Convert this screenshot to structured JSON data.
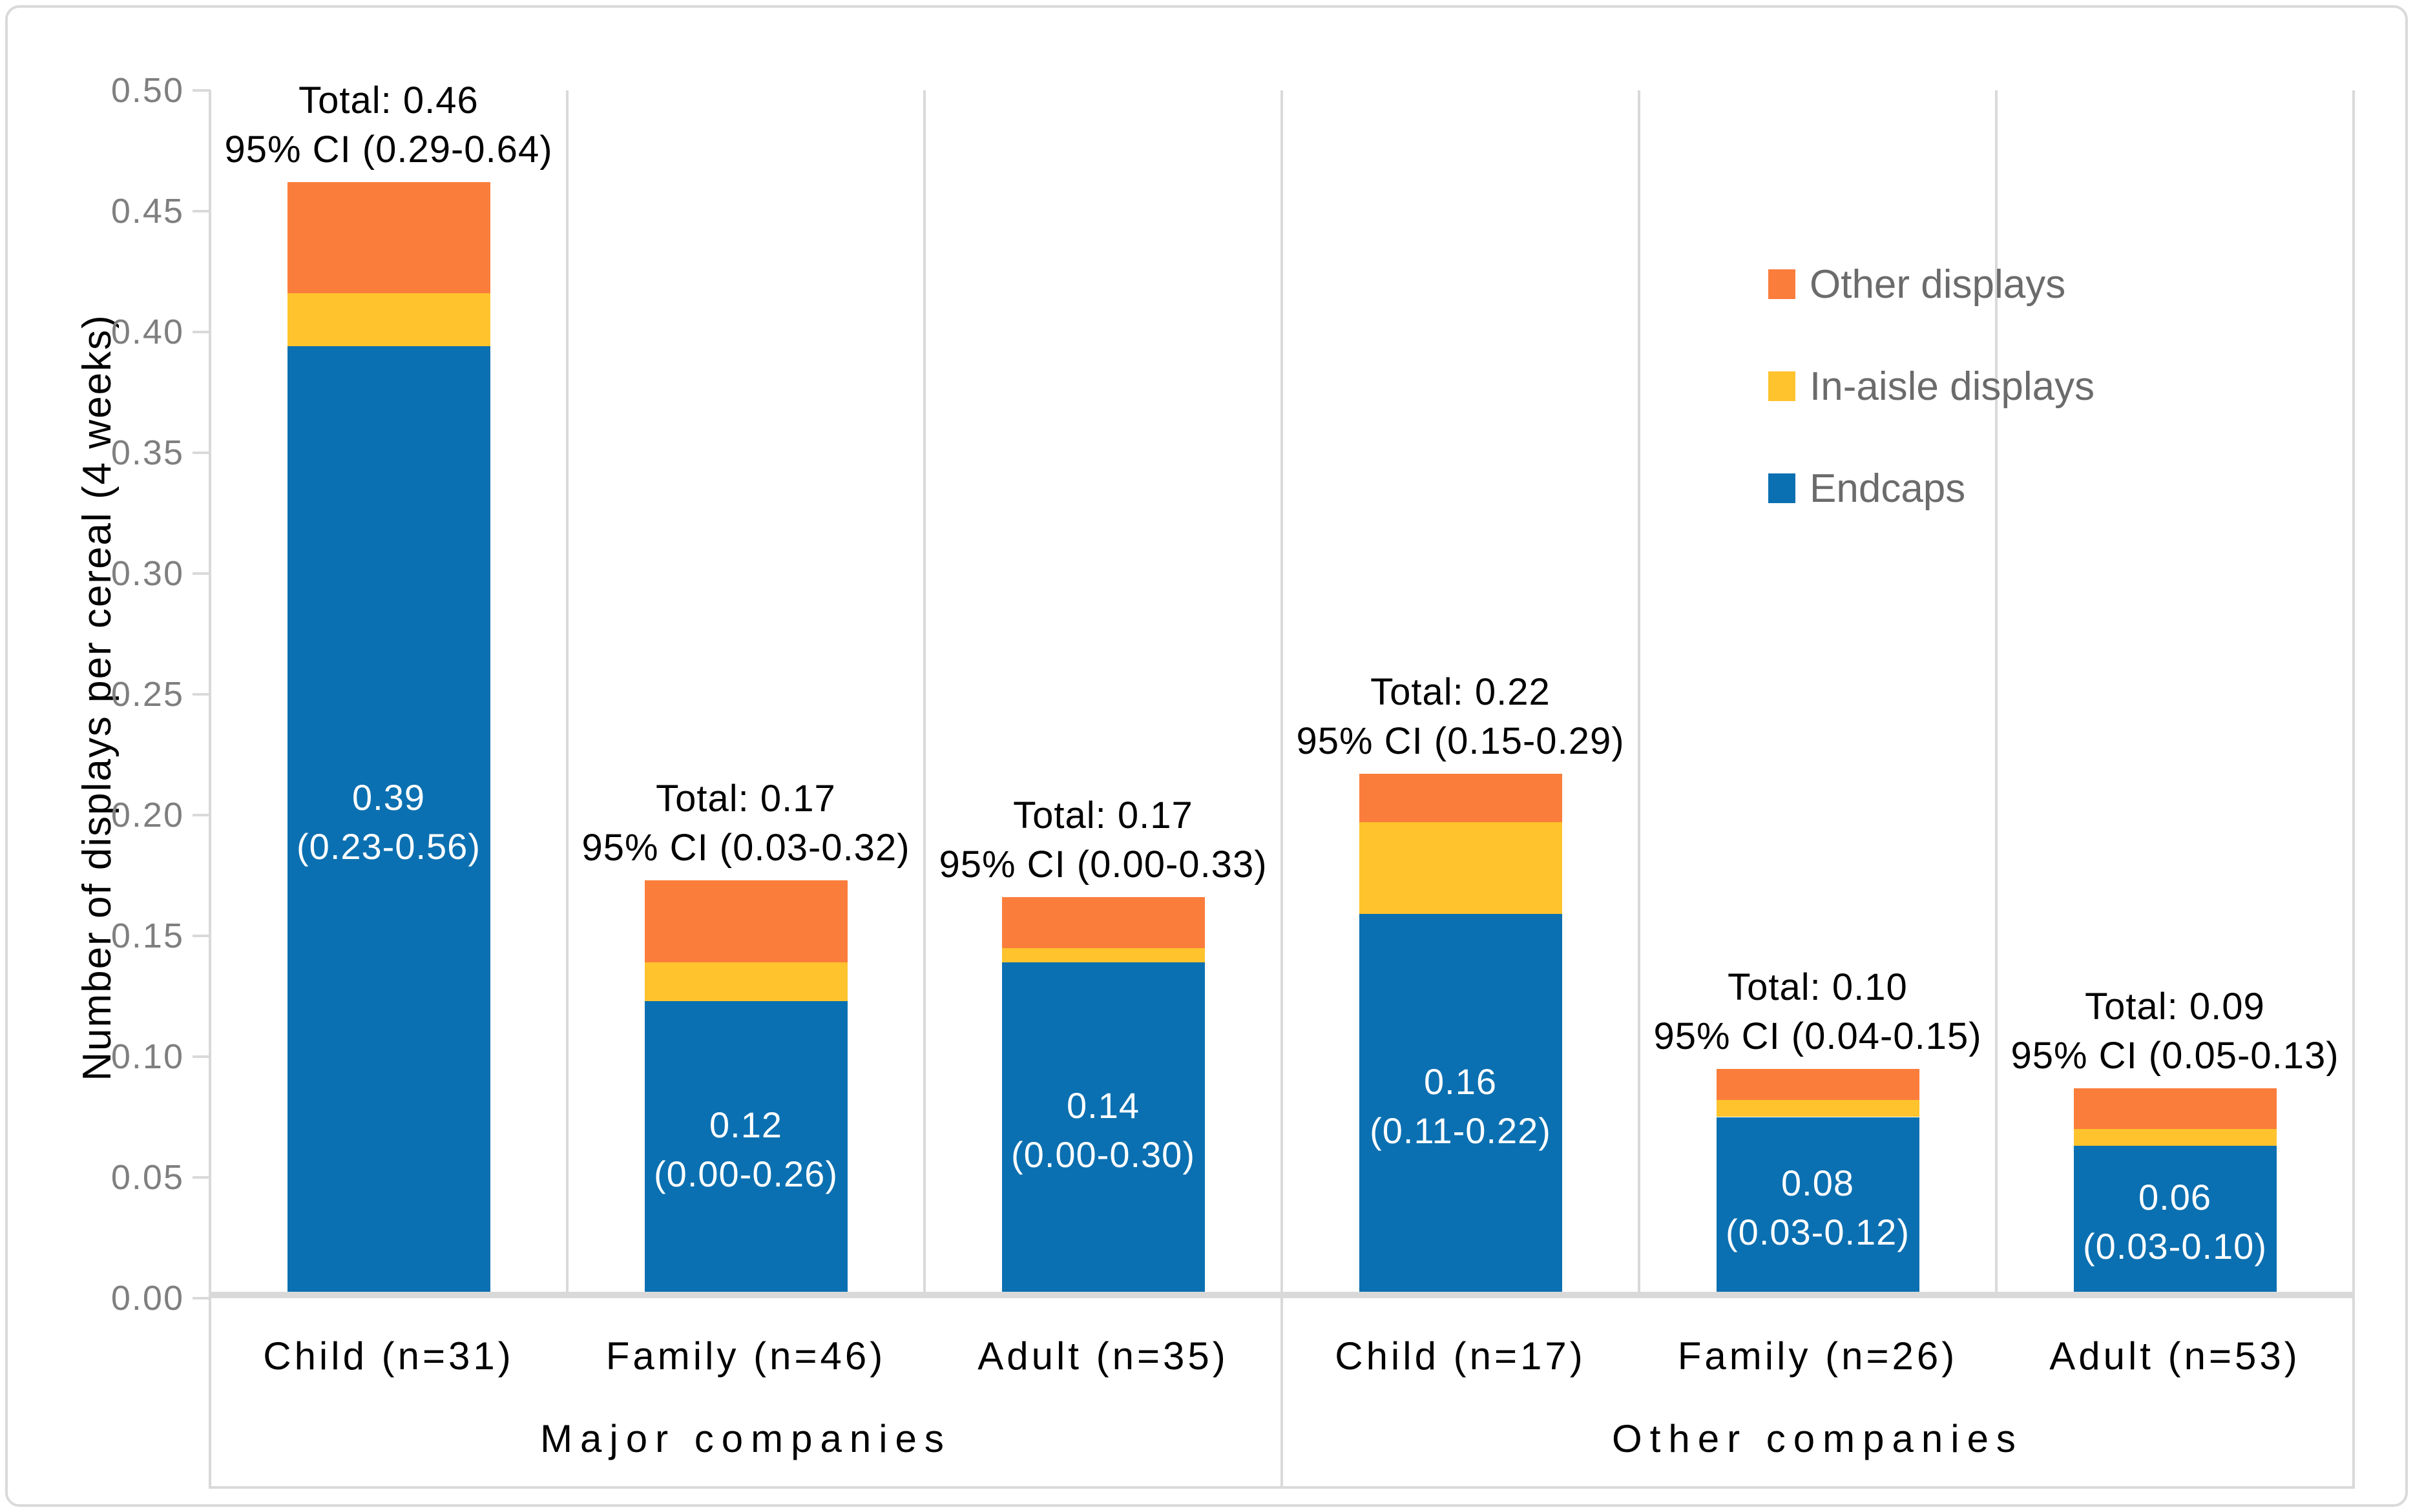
{
  "chart_data": {
    "type": "bar",
    "stacked": true,
    "title": "",
    "ylabel": "Number of displays per cereal (4 weeks)",
    "xlabel": "",
    "ylim": [
      0,
      0.5
    ],
    "ytick_step": 0.05,
    "ytick_labels": [
      "0.00",
      "0.05",
      "0.10",
      "0.15",
      "0.20",
      "0.25",
      "0.30",
      "0.35",
      "0.40",
      "0.45",
      "0.50"
    ],
    "grid": false,
    "legend_position": "inside upper-right",
    "categories": [
      "Child (n=31)",
      "Family (n=46)",
      "Adult (n=35)",
      "Child (n=17)",
      "Family (n=26)",
      "Adult (n=53)"
    ],
    "groups": [
      {
        "label": "Major companies",
        "category_indexes": [
          0,
          1,
          2
        ]
      },
      {
        "label": "Other companies",
        "category_indexes": [
          3,
          4,
          5
        ]
      }
    ],
    "series": [
      {
        "name": "Endcaps",
        "color": "#0B70B1",
        "values": [
          0.394,
          0.123,
          0.139,
          0.159,
          0.075,
          0.063
        ]
      },
      {
        "name": "In-aisle displays",
        "color": "#FFC32D",
        "values": [
          0.022,
          0.016,
          0.006,
          0.038,
          0.007,
          0.007
        ]
      },
      {
        "name": "Other displays",
        "color": "#FB7D3B",
        "values": [
          0.046,
          0.034,
          0.021,
          0.02,
          0.013,
          0.017
        ]
      }
    ],
    "annotations": [
      {
        "total": "Total: 0.46",
        "ci": "95% CI (0.29-0.64)",
        "endcap_value": "0.39",
        "endcap_ci": "(0.23-0.56)"
      },
      {
        "total": "Total: 0.17",
        "ci": "95% CI (0.03-0.32)",
        "endcap_value": "0.12",
        "endcap_ci": "(0.00-0.26)"
      },
      {
        "total": "Total: 0.17",
        "ci": "95% CI (0.00-0.33)",
        "endcap_value": "0.14",
        "endcap_ci": "(0.00-0.30)"
      },
      {
        "total": "Total: 0.22",
        "ci": "95% CI (0.15-0.29)",
        "endcap_value": "0.16",
        "endcap_ci": "(0.11-0.22)"
      },
      {
        "total": "Total: 0.10",
        "ci": "95% CI (0.04-0.15)",
        "endcap_value": "0.08",
        "endcap_ci": "(0.03-0.12)"
      },
      {
        "total": "Total: 0.09",
        "ci": "95% CI (0.05-0.13)",
        "endcap_value": "0.06",
        "endcap_ci": "(0.03-0.10)"
      }
    ]
  },
  "legend": {
    "items": [
      {
        "label": "Other displays",
        "color": "#FB7D3B"
      },
      {
        "label": "In-aisle displays",
        "color": "#FFC32D"
      },
      {
        "label": "Endcaps",
        "color": "#0B70B1"
      }
    ]
  },
  "colors": {
    "axis_line": "#D9D9D9",
    "tick_text": "#7F7F7F",
    "legend_text": "#6B6B6B",
    "annotation_text": "#000000",
    "bar_label_text": "#FFFFFF"
  }
}
